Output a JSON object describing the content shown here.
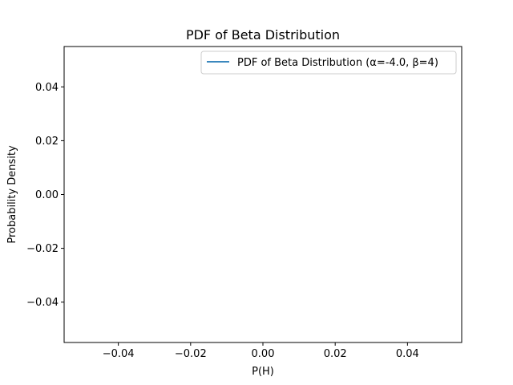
{
  "chart_data": {
    "type": "line",
    "title": "PDF of Beta Distribution",
    "xlabel": "P(H)",
    "ylabel": "Probability Density",
    "xlim": [
      -0.055,
      0.055
    ],
    "ylim": [
      -0.055,
      0.055
    ],
    "xticks": [
      -0.04,
      -0.02,
      0.0,
      0.02,
      0.04
    ],
    "xtick_labels": [
      "−0.04",
      "−0.02",
      "0.00",
      "0.02",
      "0.04"
    ],
    "yticks": [
      -0.04,
      -0.02,
      0.0,
      0.02,
      0.04
    ],
    "ytick_labels": [
      "−0.04",
      "−0.02",
      "0.00",
      "0.02",
      "0.04"
    ],
    "grid": false,
    "legend_position": "upper right",
    "series": [
      {
        "name": "PDF of Beta Distribution (α=-4.0, β=4)",
        "color": "#1f77b4",
        "x": [],
        "y": []
      }
    ]
  }
}
